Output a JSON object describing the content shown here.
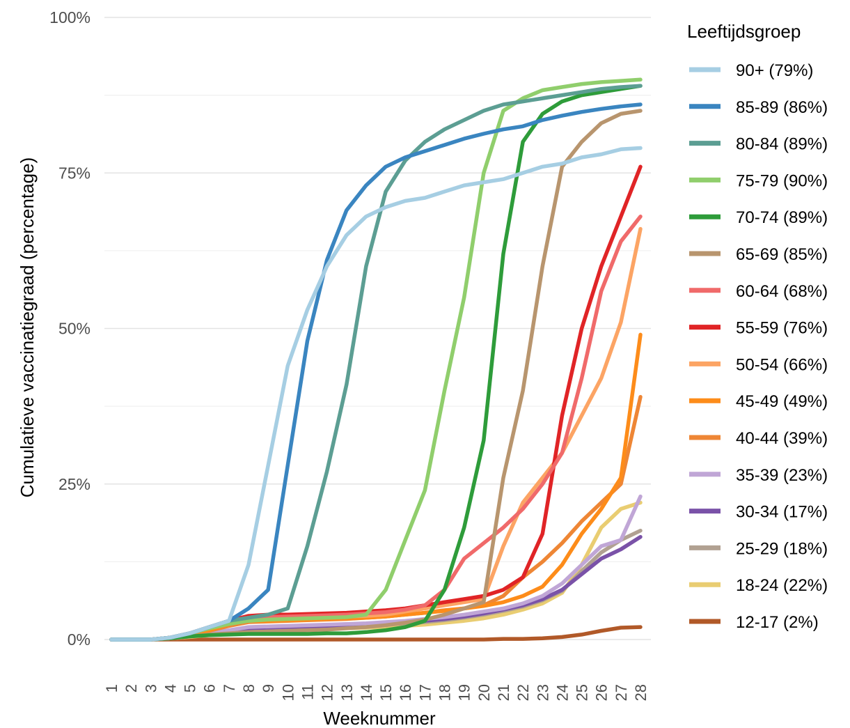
{
  "chart_data": {
    "type": "line",
    "xlabel": "Weeknummer",
    "ylabel": "Cumulatieve vaccinatiegraad (percentage)",
    "xlim": [
      1,
      28
    ],
    "ylim": [
      0,
      100
    ],
    "x_ticks": [
      "1",
      "2",
      "3",
      "4",
      "5",
      "6",
      "7",
      "8",
      "9",
      "10",
      "11",
      "12",
      "13",
      "14",
      "15",
      "16",
      "17",
      "18",
      "19",
      "20",
      "21",
      "22",
      "23",
      "24",
      "25",
      "26",
      "27",
      "28"
    ],
    "y_ticks": [
      {
        "value": 0,
        "label": "0%"
      },
      {
        "value": 25,
        "label": "25%"
      },
      {
        "value": 50,
        "label": "50%"
      },
      {
        "value": 75,
        "label": "75%"
      },
      {
        "value": 100,
        "label": "100%"
      }
    ],
    "grid": true,
    "legend": {
      "title": "Leeftijdsgroep",
      "position": "right"
    },
    "x": [
      1,
      2,
      3,
      4,
      5,
      6,
      7,
      8,
      9,
      10,
      11,
      12,
      13,
      14,
      15,
      16,
      17,
      18,
      19,
      20,
      21,
      22,
      23,
      24,
      25,
      26,
      27,
      28
    ],
    "series": [
      {
        "name": "90+ (79%)",
        "color": "#a6cee3",
        "values": [
          0,
          0,
          0,
          0.3,
          1,
          2,
          3,
          12,
          28,
          44,
          53,
          60,
          65,
          68,
          69.5,
          70.5,
          71,
          72,
          73,
          73.5,
          74,
          75,
          76,
          76.5,
          77.5,
          78,
          78.8,
          79
        ]
      },
      {
        "name": "85-89 (86%)",
        "color": "#3a85c0",
        "values": [
          0,
          0,
          0,
          0.3,
          1,
          2,
          3,
          5,
          8,
          28,
          48,
          61,
          69,
          73,
          76,
          77.5,
          78.5,
          79.5,
          80.5,
          81.3,
          82,
          82.5,
          83.5,
          84.2,
          84.8,
          85.3,
          85.7,
          86
        ]
      },
      {
        "name": "80-84 (89%)",
        "color": "#5c9e93",
        "values": [
          0,
          0,
          0,
          0.3,
          1,
          2,
          3,
          3.5,
          4,
          5,
          15,
          27,
          41,
          60,
          72,
          77,
          80,
          82,
          83.5,
          85,
          86,
          86.5,
          87,
          87.5,
          88,
          88.5,
          88.8,
          89
        ]
      },
      {
        "name": "75-79 (90%)",
        "color": "#90ce6c",
        "values": [
          0,
          0,
          0,
          0.3,
          1,
          1.8,
          2.5,
          3,
          3.2,
          3.3,
          3.4,
          3.5,
          3.6,
          4,
          8,
          16,
          24,
          40,
          55,
          75,
          85,
          87,
          88.3,
          88.8,
          89.3,
          89.6,
          89.8,
          90
        ]
      },
      {
        "name": "70-74 (89%)",
        "color": "#2e9c3a",
        "values": [
          0,
          0,
          0,
          0.2,
          0.5,
          0.7,
          0.8,
          0.9,
          0.9,
          0.9,
          0.9,
          1,
          1,
          1.2,
          1.5,
          2,
          3,
          8,
          18,
          32,
          62,
          80,
          84.5,
          86.5,
          87.5,
          88,
          88.5,
          89
        ]
      },
      {
        "name": "65-69 (85%)",
        "color": "#b8956e",
        "values": [
          0,
          0,
          0,
          0.2,
          0.5,
          0.8,
          1,
          1.2,
          1.3,
          1.4,
          1.5,
          1.6,
          1.8,
          2,
          2.3,
          2.7,
          3.2,
          4,
          5,
          6,
          26,
          40,
          60,
          76,
          80,
          83,
          84.5,
          85
        ]
      },
      {
        "name": "60-64 (68%)",
        "color": "#f06a6a",
        "values": [
          0,
          0,
          0,
          0.3,
          1,
          2,
          3,
          3.5,
          3.6,
          3.7,
          3.8,
          3.9,
          4,
          4.2,
          4.4,
          4.8,
          5.5,
          8,
          13,
          15.5,
          18,
          21,
          25,
          30,
          42,
          56,
          64,
          68
        ]
      },
      {
        "name": "55-59 (76%)",
        "color": "#e02426",
        "values": [
          0,
          0,
          0,
          0.3,
          1,
          2,
          3,
          3.8,
          4,
          4,
          4.1,
          4.2,
          4.3,
          4.5,
          4.7,
          5,
          5.5,
          6,
          6.5,
          7,
          8,
          10,
          17,
          36,
          50,
          60,
          68,
          76
        ]
      },
      {
        "name": "50-54 (66%)",
        "color": "#fca464",
        "values": [
          0,
          0,
          0,
          0.3,
          1,
          1.8,
          2.8,
          3.2,
          3.3,
          3.4,
          3.5,
          3.6,
          3.7,
          3.8,
          4,
          4.5,
          5,
          5.5,
          6,
          6.5,
          15,
          22,
          26,
          30,
          36,
          42,
          51,
          66
        ]
      },
      {
        "name": "45-49 (49%)",
        "color": "#fd8c1a",
        "values": [
          0,
          0,
          0,
          0.3,
          0.8,
          1.5,
          2.5,
          3,
          3,
          3.1,
          3.2,
          3.3,
          3.4,
          3.5,
          3.7,
          4,
          4.3,
          4.6,
          5,
          5.4,
          6,
          7,
          8.5,
          12,
          17,
          21,
          26,
          49
        ]
      },
      {
        "name": "40-44 (39%)",
        "color": "#ee8635",
        "values": [
          0,
          0,
          0,
          0.3,
          0.8,
          1.4,
          2.2,
          2.8,
          2.9,
          3,
          3.1,
          3.2,
          3.3,
          3.5,
          3.7,
          4,
          4.3,
          4.7,
          5,
          5.5,
          7,
          10,
          12.5,
          15.5,
          19,
          22,
          25,
          39
        ]
      },
      {
        "name": "35-39 (23%)",
        "color": "#c0a6d6",
        "values": [
          0,
          0,
          0,
          0.2,
          0.5,
          1,
          1.5,
          2,
          2.1,
          2.2,
          2.3,
          2.4,
          2.5,
          2.6,
          2.8,
          3,
          3.3,
          3.6,
          4,
          4.5,
          5,
          5.8,
          7,
          9,
          12,
          15,
          16,
          23
        ]
      },
      {
        "name": "30-34 (17%)",
        "color": "#7a52a8",
        "values": [
          0,
          0,
          0,
          0.2,
          0.5,
          0.9,
          1.3,
          1.8,
          1.9,
          2,
          2.1,
          2.2,
          2.3,
          2.4,
          2.6,
          2.8,
          3,
          3.3,
          3.7,
          4.2,
          4.8,
          5.5,
          6.5,
          8,
          10.5,
          13,
          14.5,
          16.5
        ]
      },
      {
        "name": "25-29 (18%)",
        "color": "#b1a192",
        "values": [
          0,
          0,
          0,
          0.2,
          0.5,
          0.8,
          1.2,
          1.6,
          1.7,
          1.8,
          1.9,
          2,
          2.1,
          2.2,
          2.4,
          2.6,
          2.8,
          3.1,
          3.5,
          4,
          4.6,
          5.3,
          6.3,
          7.8,
          11,
          14,
          16,
          17.5
        ]
      },
      {
        "name": "18-24 (22%)",
        "color": "#e9cd72",
        "values": [
          0,
          0,
          0,
          0.2,
          0.4,
          0.7,
          1,
          1.3,
          1.4,
          1.5,
          1.6,
          1.7,
          1.8,
          1.9,
          2,
          2.2,
          2.4,
          2.7,
          3,
          3.4,
          4,
          4.8,
          5.8,
          7.5,
          12,
          18,
          21,
          22
        ]
      },
      {
        "name": "12-17 (2%)",
        "color": "#b15928",
        "values": [
          0,
          0,
          0,
          0,
          0,
          0,
          0,
          0,
          0,
          0,
          0,
          0,
          0,
          0,
          0,
          0,
          0,
          0,
          0,
          0,
          0.1,
          0.1,
          0.2,
          0.4,
          0.8,
          1.4,
          1.9,
          2
        ]
      }
    ]
  }
}
